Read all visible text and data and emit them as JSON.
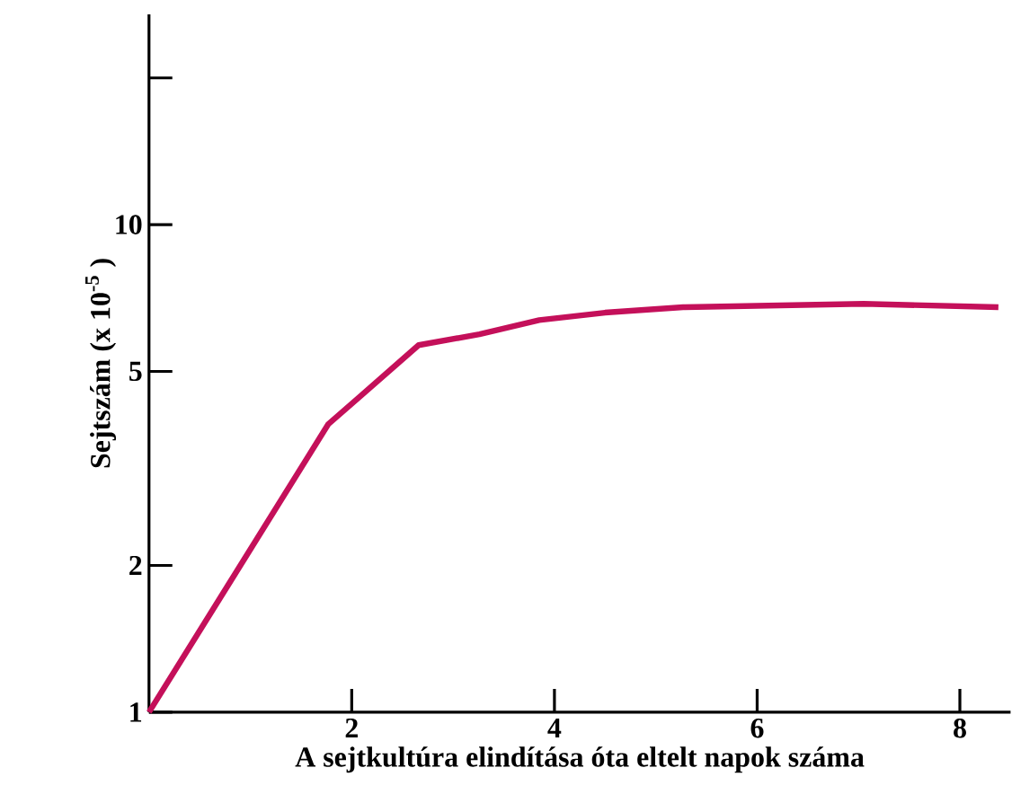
{
  "chart_data": {
    "type": "line",
    "xlabel": "A  sejtkultúra elindítása óta eltelt napok száma",
    "ylabel": "Sejtszám (x 10$^{-5}$ )",
    "x": [
      0,
      1.77,
      2.07,
      2.66,
      3.26,
      3.85,
      4.5,
      5.27,
      7.05,
      8.38
    ],
    "series": [
      {
        "color": "#c4105a",
        "values": [
          1,
          3.9,
          4.42,
          5.66,
          5.96,
          6.37,
          6.6,
          6.77,
          6.88,
          6.77
        ]
      }
    ],
    "log": "y",
    "xlim": [
      0,
      8.5
    ],
    "ylim": [
      1,
      27
    ],
    "xticks": [
      2,
      4,
      6,
      8
    ],
    "yticks": [
      1,
      2,
      5,
      10,
      {
        "value": 20,
        "label": null
      }
    ],
    "marker": "none",
    "line_style": "solid"
  }
}
